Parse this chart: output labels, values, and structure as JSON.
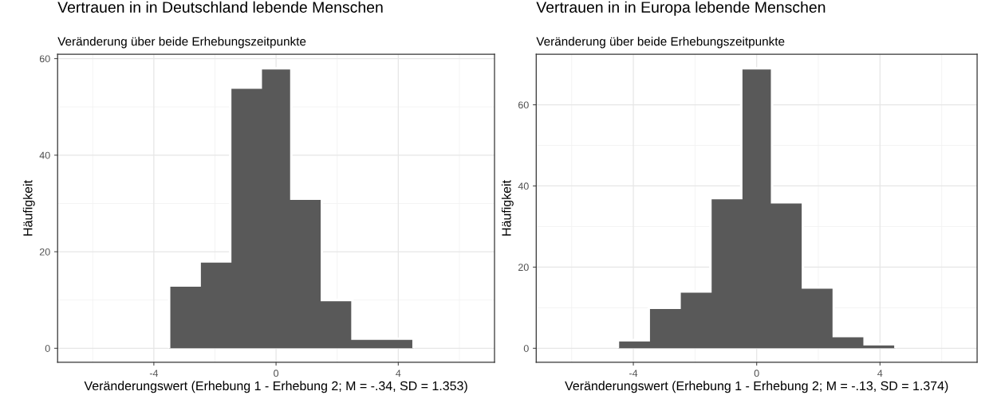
{
  "chart_data": [
    {
      "type": "histogram",
      "title": "Vertrauen in in Deutschland lebende Menschen",
      "subtitle": "Veränderung über beide Erhebungszeitpunkte",
      "xlabel": "Veränderungswert (Erhebung 1 - Erhebung 2; M = -.34, SD = 1.353)",
      "ylabel": "Häufigkeit",
      "bins": [
        -3.5,
        -2.5,
        -1.5,
        -0.5,
        0.5,
        1.5,
        2.5,
        3.5,
        4.5
      ],
      "values": [
        13,
        18,
        54,
        58,
        31,
        10,
        2,
        2
      ],
      "color": "#595959",
      "xlim": [
        -7.15,
        7.15
      ],
      "xticks": [
        -4,
        0,
        4
      ],
      "ylim": [
        -2.9,
        60.9
      ],
      "yticks": [
        0,
        20,
        40,
        60
      ],
      "grid": true
    },
    {
      "type": "histogram",
      "title": "Vertrauen in in Europa lebende Menschen",
      "subtitle": "Veränderung über beide Erhebungszeitpunkte",
      "xlabel": "Veränderungswert (Erhebung 1 - Erhebung 2; M = -.13, SD = 1.374)",
      "ylabel": "Häufigkeit",
      "bins": [
        -4.5,
        -3.5,
        -2.5,
        -1.5,
        -0.5,
        0.5,
        1.5,
        2.5,
        3.5,
        4.5
      ],
      "values": [
        2,
        10,
        14,
        37,
        69,
        36,
        15,
        3,
        1
      ],
      "color": "#595959",
      "xlim": [
        -7.15,
        7.15
      ],
      "xticks": [
        -4,
        0,
        4
      ],
      "ylim": [
        -3.45,
        72.45
      ],
      "yticks": [
        0,
        20,
        40,
        60
      ],
      "grid": true
    }
  ]
}
